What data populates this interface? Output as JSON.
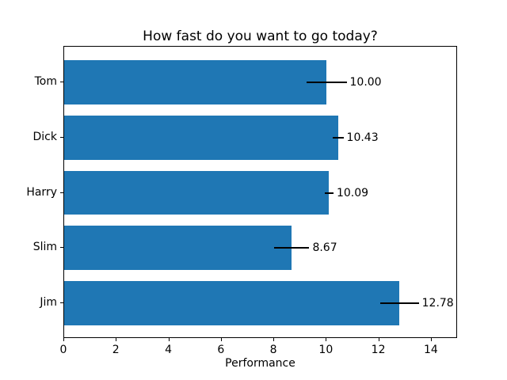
{
  "chart_data": {
    "type": "bar",
    "orientation": "horizontal",
    "title": "How fast do you want to go today?",
    "xlabel": "Performance",
    "ylabel": "",
    "categories": [
      "Tom",
      "Dick",
      "Harry",
      "Slim",
      "Jim"
    ],
    "values": [
      10.0,
      10.43,
      10.09,
      8.67,
      12.78
    ],
    "errors": [
      0.76,
      0.21,
      0.17,
      0.67,
      0.73
    ],
    "bar_labels": [
      "10.00",
      "10.43",
      "10.09",
      "8.67",
      "12.78"
    ],
    "x_ticks": [
      0,
      2,
      4,
      6,
      8,
      10,
      12,
      14
    ],
    "xlim": [
      0,
      15
    ],
    "bar_color": "#1f77b4",
    "error_color": "#000000",
    "background_color": "#ffffff",
    "grid": false,
    "legend": null,
    "y_axis_inverted": true
  }
}
